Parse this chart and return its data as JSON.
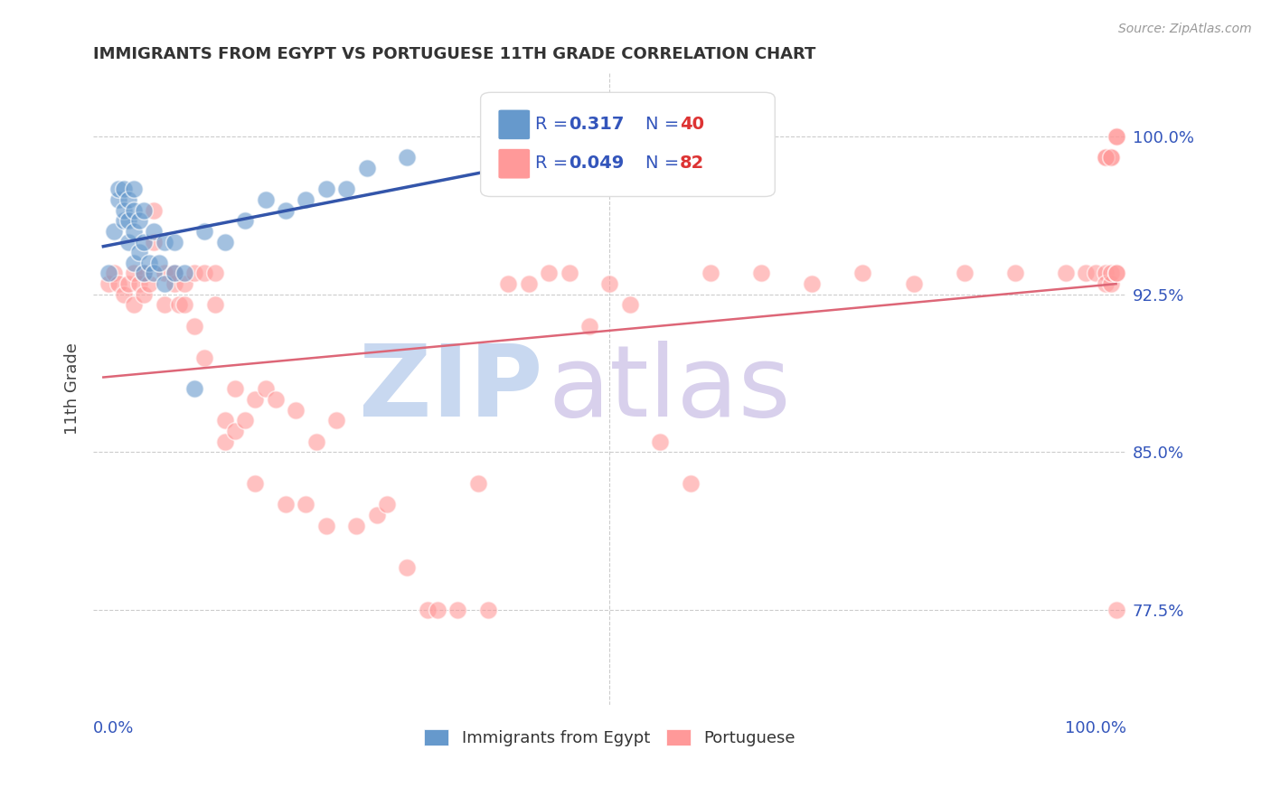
{
  "title": "IMMIGRANTS FROM EGYPT VS PORTUGUESE 11TH GRADE CORRELATION CHART",
  "source": "Source: ZipAtlas.com",
  "ylabel": "11th Grade",
  "ytick_labels": [
    "100.0%",
    "92.5%",
    "85.0%",
    "77.5%"
  ],
  "ytick_values": [
    1.0,
    0.925,
    0.85,
    0.775
  ],
  "legend_blue_R": "0.317",
  "legend_blue_N": "40",
  "legend_pink_R": "0.049",
  "legend_pink_N": "82",
  "blue_color": "#6699CC",
  "pink_color": "#FF9999",
  "blue_line_color": "#3355AA",
  "pink_line_color": "#DD6677",
  "background_color": "#FFFFFF",
  "watermark_zip": "ZIP",
  "watermark_atlas": "atlas",
  "watermark_color_zip": "#C8D8F0",
  "watermark_color_atlas": "#D0C8E8",
  "blue_points_x": [
    0.005,
    0.01,
    0.015,
    0.015,
    0.02,
    0.02,
    0.02,
    0.025,
    0.025,
    0.025,
    0.03,
    0.03,
    0.03,
    0.03,
    0.035,
    0.035,
    0.04,
    0.04,
    0.04,
    0.045,
    0.05,
    0.05,
    0.055,
    0.06,
    0.06,
    0.07,
    0.07,
    0.08,
    0.09,
    0.1,
    0.12,
    0.14,
    0.16,
    0.18,
    0.2,
    0.22,
    0.24,
    0.26,
    0.3,
    0.45
  ],
  "blue_points_y": [
    0.935,
    0.955,
    0.97,
    0.975,
    0.96,
    0.965,
    0.975,
    0.95,
    0.96,
    0.97,
    0.94,
    0.955,
    0.965,
    0.975,
    0.945,
    0.96,
    0.935,
    0.95,
    0.965,
    0.94,
    0.935,
    0.955,
    0.94,
    0.93,
    0.95,
    0.935,
    0.95,
    0.935,
    0.88,
    0.955,
    0.95,
    0.96,
    0.97,
    0.965,
    0.97,
    0.975,
    0.975,
    0.985,
    0.99,
    0.99
  ],
  "pink_points_x": [
    0.005,
    0.01,
    0.015,
    0.02,
    0.025,
    0.03,
    0.03,
    0.035,
    0.04,
    0.04,
    0.045,
    0.05,
    0.05,
    0.06,
    0.06,
    0.07,
    0.07,
    0.075,
    0.08,
    0.08,
    0.09,
    0.09,
    0.1,
    0.1,
    0.11,
    0.11,
    0.12,
    0.12,
    0.13,
    0.13,
    0.14,
    0.15,
    0.15,
    0.16,
    0.17,
    0.18,
    0.19,
    0.2,
    0.21,
    0.22,
    0.23,
    0.25,
    0.27,
    0.28,
    0.3,
    0.32,
    0.33,
    0.35,
    0.37,
    0.38,
    0.4,
    0.42,
    0.44,
    0.46,
    0.48,
    0.5,
    0.52,
    0.55,
    0.58,
    0.6,
    0.65,
    0.7,
    0.75,
    0.8,
    0.85,
    0.9,
    0.95,
    0.97,
    0.98,
    0.99,
    0.99,
    0.995,
    0.995,
    1.0,
    1.0,
    0.995,
    0.99,
    1.0,
    0.99,
    1.0,
    0.995,
    1.0
  ],
  "pink_points_y": [
    0.93,
    0.935,
    0.93,
    0.925,
    0.93,
    0.92,
    0.935,
    0.93,
    0.935,
    0.925,
    0.93,
    0.95,
    0.965,
    0.92,
    0.935,
    0.93,
    0.935,
    0.92,
    0.93,
    0.92,
    0.935,
    0.91,
    0.935,
    0.895,
    0.935,
    0.92,
    0.855,
    0.865,
    0.88,
    0.86,
    0.865,
    0.875,
    0.835,
    0.88,
    0.875,
    0.825,
    0.87,
    0.825,
    0.855,
    0.815,
    0.865,
    0.815,
    0.82,
    0.825,
    0.795,
    0.775,
    0.775,
    0.775,
    0.835,
    0.775,
    0.93,
    0.93,
    0.935,
    0.935,
    0.91,
    0.93,
    0.92,
    0.855,
    0.835,
    0.935,
    0.935,
    0.93,
    0.935,
    0.93,
    0.935,
    0.935,
    0.935,
    0.935,
    0.935,
    0.935,
    0.93,
    0.93,
    0.935,
    0.935,
    0.935,
    0.99,
    0.99,
    1.0,
    0.99,
    1.0,
    0.99,
    0.775
  ]
}
